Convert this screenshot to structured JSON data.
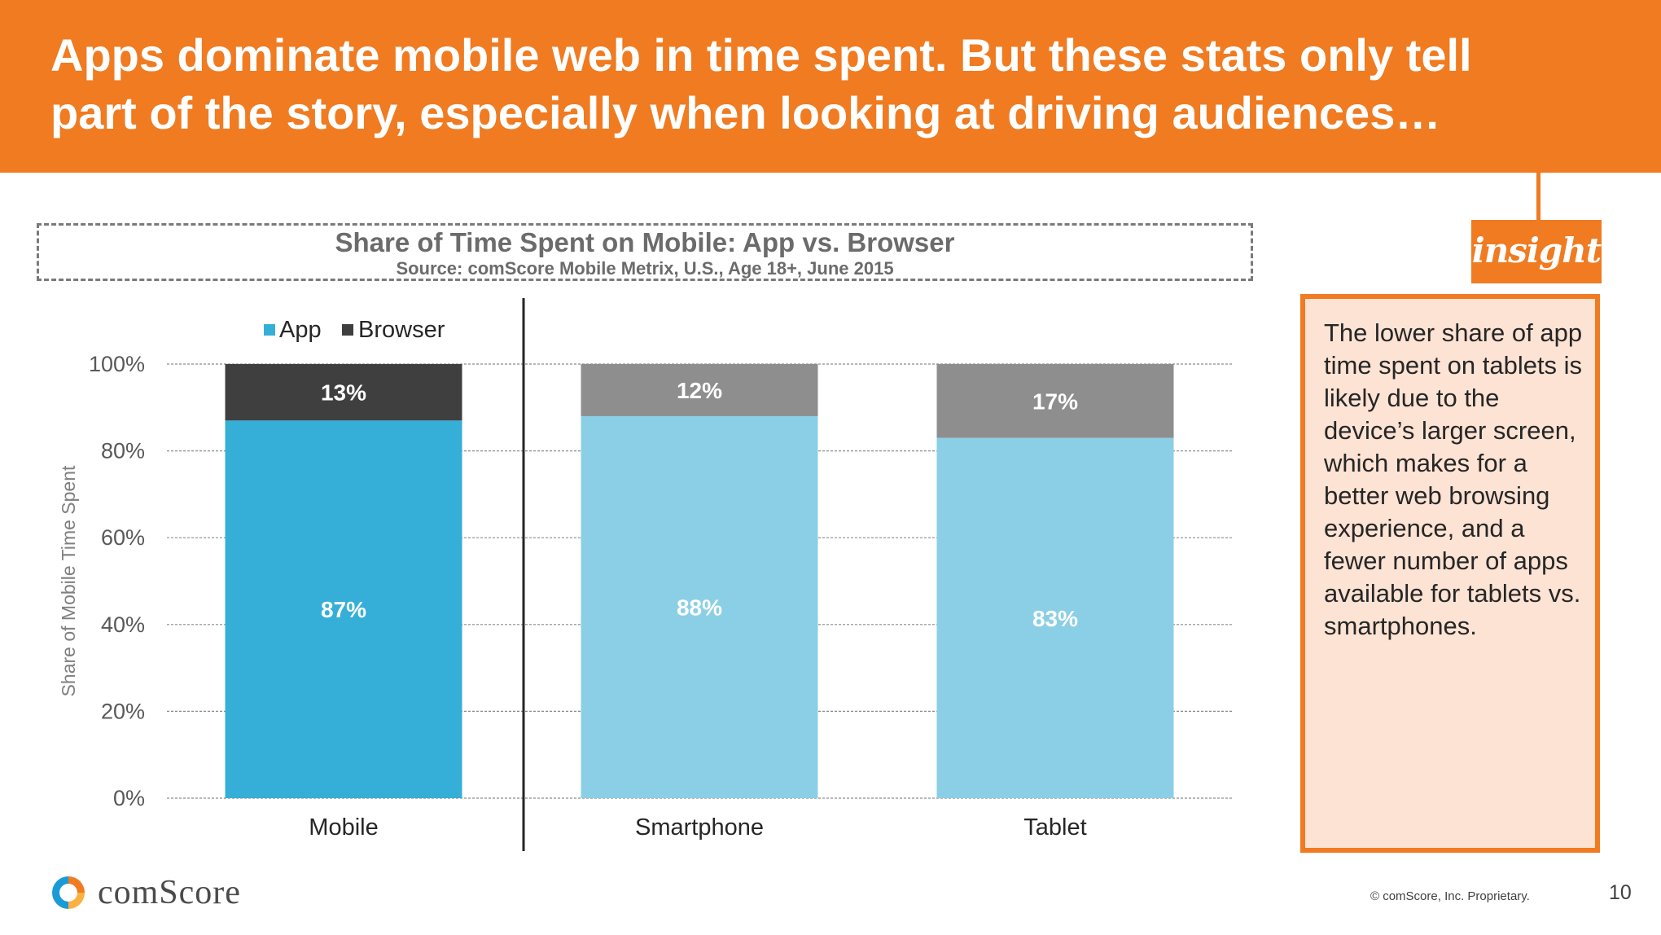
{
  "header": {
    "title_line1": "Apps dominate mobile web in time spent. But these stats only tell",
    "title_line2": "part of the story, especially when looking at driving audiences…"
  },
  "chart_data": {
    "type": "bar",
    "stacked": true,
    "title": "Share of Time Spent on Mobile: App vs. Browser",
    "subtitle": "Source: comScore Mobile Metrix, U.S., Age 18+, June 2015",
    "xlabel": "",
    "ylabel": "Share of Mobile Time Spent",
    "categories": [
      "Mobile",
      "Smartphone",
      "Tablet"
    ],
    "series": [
      {
        "name": "App",
        "values": [
          87,
          88,
          83
        ],
        "labels": [
          "87%",
          "88%",
          "83%"
        ],
        "colors": [
          "#35afd8",
          "#8bcfe6",
          "#8bcfe6"
        ]
      },
      {
        "name": "Browser",
        "values": [
          13,
          12,
          17
        ],
        "labels": [
          "13%",
          "12%",
          "17%"
        ],
        "colors": [
          "#3f3f3f",
          "#8e8e8e",
          "#8e8e8e"
        ]
      }
    ],
    "ylim": [
      0,
      100
    ],
    "yticks": [
      0,
      20,
      40,
      60,
      80,
      100
    ],
    "ytick_labels": [
      "0%",
      "20%",
      "40%",
      "60%",
      "80%",
      "100%"
    ],
    "legend": {
      "position": "top-left",
      "entries": [
        {
          "name": "App",
          "color": "#35afd8"
        },
        {
          "name": "Browser",
          "color": "#3f3f3f"
        }
      ]
    },
    "grid": true
  },
  "insight": {
    "tag": "insight",
    "text": "The lower share of app time spent on tablets is likely due to the device’s larger screen, which makes for a better web browsing experience, and a fewer number of apps available for tablets vs. smartphones."
  },
  "footer": {
    "logo_text": "comScore",
    "copyright": "© comScore, Inc. Proprietary.",
    "page_number": "10"
  },
  "colors": {
    "accent": "#f07b21",
    "insight_bg": "#fde3d4"
  }
}
